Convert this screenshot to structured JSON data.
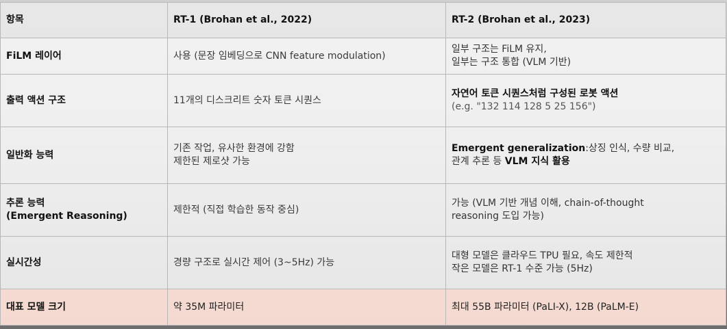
{
  "columns": {
    "item": "항목",
    "rt1": "RT-1 (Brohan et al., 2022)",
    "rt2": "RT-2 (Brohan et al., 2023)"
  },
  "rows": [
    {
      "label": "FiLM 레이어",
      "rt1": "사용 (문장 임베딩으로 CNN feature modulation)",
      "rt2_line1": "일부 구조는 FiLM 유지,",
      "rt2_line2": "일부는 구조 통합 (VLM 기반)"
    },
    {
      "label": "출력 액션 구조",
      "rt1": "11개의 디스크리트 숫자 토큰 시퀀스",
      "rt2_bold": "자연어 토큰 시퀀스처럼 구성된 로봇 액션",
      "rt2_example": "(e.g. \"132 114 128 5 25 156\")"
    },
    {
      "label": "일반화 능력",
      "rt1_line1": "기존 작업, 유사한 환경에 강함",
      "rt1_line2": "제한된 제로샷 가능",
      "rt2_bold1": "Emergent generalization",
      "rt2_text1": ":상징 인식, 수량 비교,",
      "rt2_text2": "관계 추론 등 ",
      "rt2_bold2": "VLM 지식 활용"
    },
    {
      "label_line1": "추론 능력",
      "label_line2": "(Emergent Reasoning)",
      "rt1": "제한적 (직접 학습한 동작 중심)",
      "rt2_line1": "가능 (VLM 기반 개념 이해, chain-of-thought",
      "rt2_line2": "reasoning 도입 가능)"
    },
    {
      "label": "실시간성",
      "rt1": "경량 구조로 실시간 제어 (3~5Hz) 가능",
      "rt2_line1": "대형 모델은 클라우드 TPU 필요, 속도 제한적",
      "rt2_line2": "작은 모델은 RT-1 수준 가능 (5Hz)"
    },
    {
      "label": "대표 모델 크기",
      "rt1": "약 35M 파라미터",
      "rt2": "최대 55B 파라미터 (PaLI-X), 12B (PaLM-E)"
    }
  ],
  "colors": {
    "highlight_row": "#f8ddd3",
    "header_bg": "#e8e8e8",
    "border": "#b7b7b7"
  }
}
